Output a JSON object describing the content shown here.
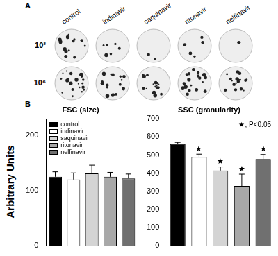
{
  "panel_a": {
    "label": "A",
    "columns": [
      "control",
      "indinavir",
      "saquinavir",
      "ritonavir",
      "nelfinavir"
    ],
    "rows": [
      "10³",
      "10⁶"
    ]
  },
  "panel_b": {
    "label": "B",
    "y_label": "Arbitrary Units"
  },
  "chart_data": [
    {
      "type": "bar",
      "title": "FSC (size)",
      "categories": [
        "control",
        "indinavir",
        "saquinavir",
        "ritonavir",
        "nelfinavir"
      ],
      "values": [
        125,
        120,
        131,
        125,
        122
      ],
      "errors": [
        9,
        12,
        15,
        8,
        8
      ],
      "colors": [
        "#000000",
        "#ffffff",
        "#d4d4d4",
        "#a8a8a8",
        "#707070"
      ],
      "ylim": [
        0,
        230
      ],
      "yticks": [
        0,
        100,
        200
      ],
      "grid": false,
      "legend": "top-left",
      "tick_labels": "y"
    },
    {
      "type": "bar",
      "title": "SSC (granularity)",
      "categories": [
        "control",
        "indinavir",
        "saquinavir",
        "ritonavir",
        "nelfinavir"
      ],
      "values": [
        560,
        490,
        415,
        330,
        478
      ],
      "errors": [
        10,
        15,
        20,
        65,
        25
      ],
      "significance": [
        null,
        "★",
        "★",
        "★",
        "★"
      ],
      "annotation": "★, P<0.05",
      "colors": [
        "#000000",
        "#ffffff",
        "#d4d4d4",
        "#a8a8a8",
        "#707070"
      ],
      "ylim": [
        0,
        700
      ],
      "yticks": [
        0,
        100,
        200,
        300,
        400,
        500,
        600,
        700
      ],
      "grid": false,
      "tick_labels": "y"
    }
  ]
}
